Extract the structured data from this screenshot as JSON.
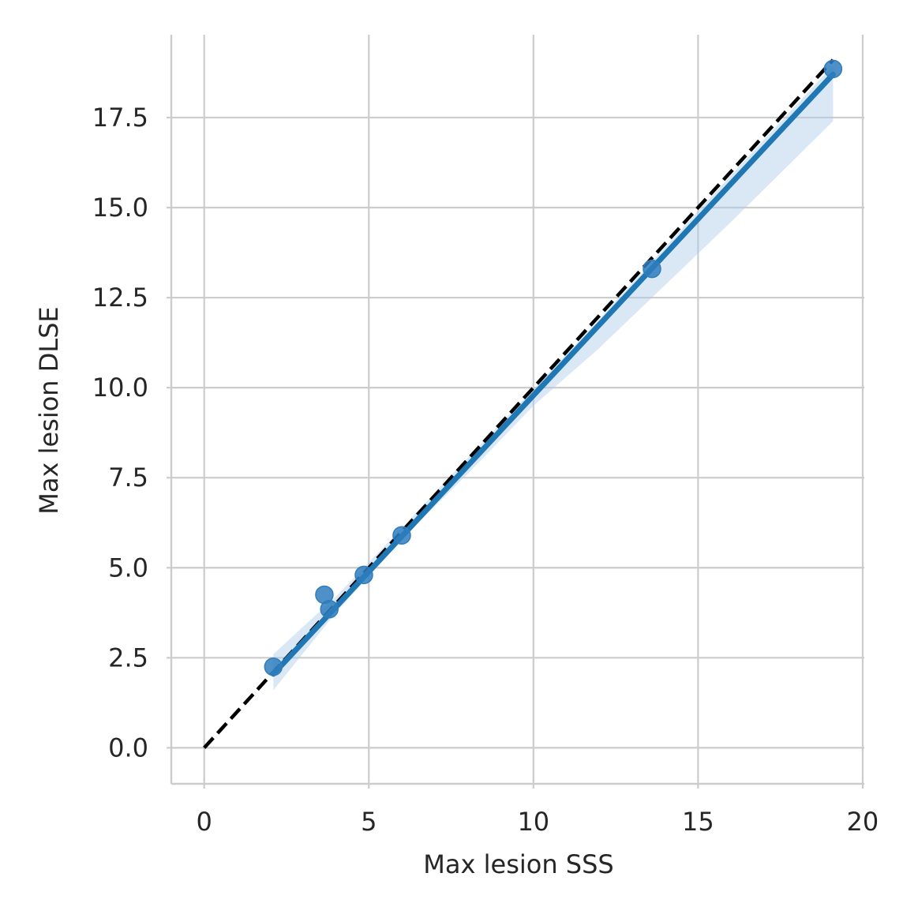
{
  "chart_data": {
    "type": "scatter",
    "title": "",
    "xlabel": "Max lesion SSS",
    "ylabel": "Max lesion DLSE",
    "xlim": [
      -1,
      20.05
    ],
    "ylim": [
      -1,
      19.8
    ],
    "xticks": [
      0,
      5,
      10,
      15,
      20
    ],
    "xtick_labels": [
      "0",
      "5",
      "10",
      "15",
      "20"
    ],
    "yticks": [
      0,
      2.5,
      5,
      7.5,
      10,
      12.5,
      15,
      17.5
    ],
    "ytick_labels": [
      "0.0",
      "2.5",
      "5.0",
      "7.5",
      "10.0",
      "12.5",
      "15.0",
      "17.5"
    ],
    "grid": true,
    "series": [
      {
        "kind": "points",
        "color": "#2f7dbd",
        "points": [
          {
            "x": 2.1,
            "y": 2.25
          },
          {
            "x": 3.65,
            "y": 4.25
          },
          {
            "x": 3.8,
            "y": 3.85
          },
          {
            "x": 4.85,
            "y": 4.8
          },
          {
            "x": 6.0,
            "y": 5.9
          },
          {
            "x": 13.6,
            "y": 13.3
          },
          {
            "x": 19.1,
            "y": 18.85
          }
        ]
      },
      {
        "kind": "regression",
        "color": "#1f77b4",
        "band_color": "#aecde8",
        "line": [
          {
            "x": 2.1,
            "y": 2.05
          },
          {
            "x": 19.1,
            "y": 18.7
          }
        ],
        "band_upper": [
          {
            "x": 2.1,
            "y": 2.6
          },
          {
            "x": 4.0,
            "y": 4.2
          },
          {
            "x": 6.0,
            "y": 6.1
          },
          {
            "x": 8.0,
            "y": 8.05
          },
          {
            "x": 10.0,
            "y": 9.95
          },
          {
            "x": 12.0,
            "y": 11.9
          },
          {
            "x": 14.0,
            "y": 13.9
          },
          {
            "x": 16.0,
            "y": 15.9
          },
          {
            "x": 19.1,
            "y": 18.95
          }
        ],
        "band_lower": [
          {
            "x": 2.1,
            "y": 1.6
          },
          {
            "x": 4.0,
            "y": 3.75
          },
          {
            "x": 6.0,
            "y": 5.8
          },
          {
            "x": 8.0,
            "y": 7.6
          },
          {
            "x": 10.0,
            "y": 9.5
          },
          {
            "x": 12.0,
            "y": 11.1
          },
          {
            "x": 14.0,
            "y": 12.85
          },
          {
            "x": 16.0,
            "y": 14.6
          },
          {
            "x": 19.1,
            "y": 17.4
          }
        ]
      },
      {
        "kind": "identity",
        "color": "#000000",
        "line": [
          {
            "x": 0,
            "y": 0
          },
          {
            "x": 19.1,
            "y": 19.1
          }
        ]
      }
    ]
  }
}
